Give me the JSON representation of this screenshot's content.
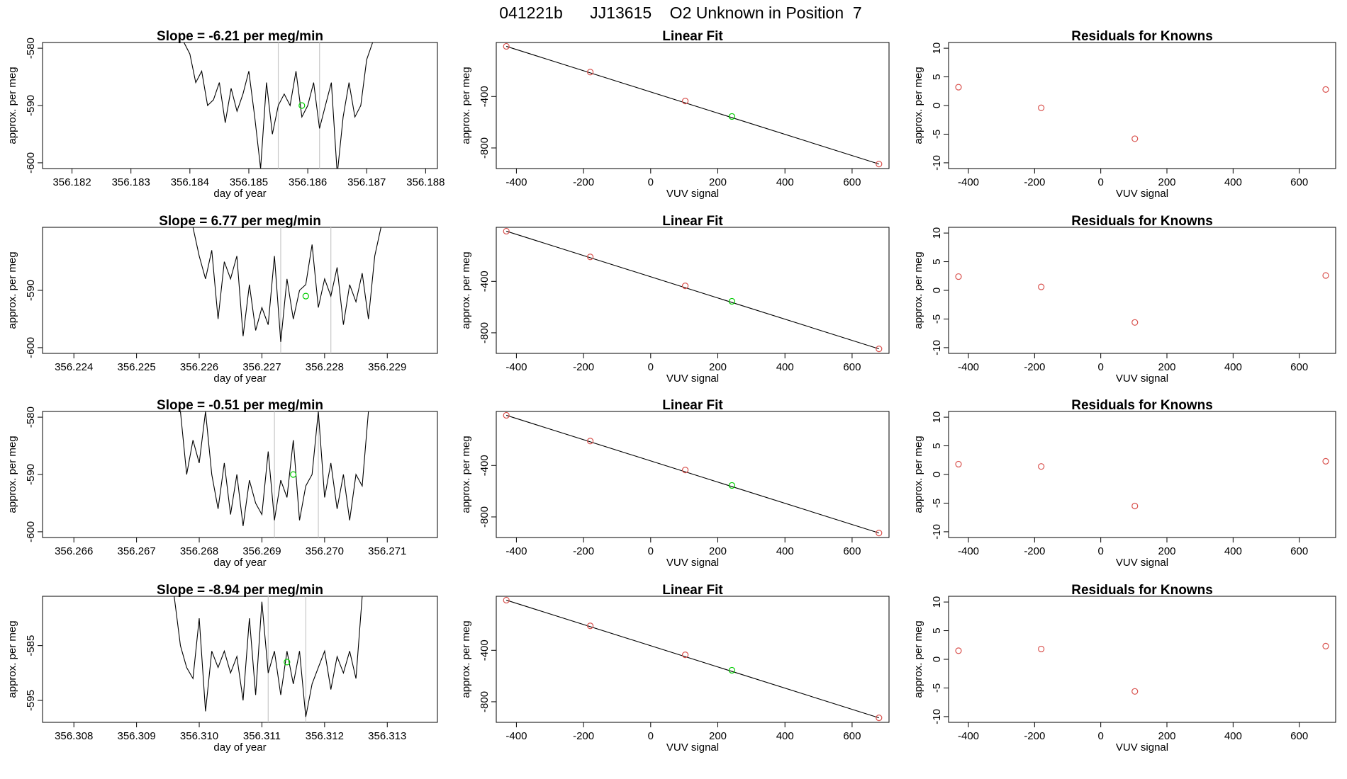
{
  "figure": {
    "suptitle": "041221b      JJ13615    O2 Unknown in Position  7"
  },
  "chart_data": [
    {
      "type": "line",
      "panel": "time-series",
      "row": 0,
      "title": "Slope =  -6.21  per meg/min",
      "xlabel": "day of year",
      "ylabel": "approx. per meg",
      "xlim": [
        356.1815,
        356.1882
      ],
      "ylim": [
        -601,
        -579
      ],
      "xticks": [
        356.182,
        356.183,
        356.184,
        356.185,
        356.186,
        356.187,
        356.188
      ],
      "xtick_labels": [
        "356.182",
        "356.183",
        "356.184",
        "356.185",
        "356.186",
        "356.187",
        "356.188"
      ],
      "yticks": [
        -580,
        -590,
        -600
      ],
      "ytick_labels": [
        "-580",
        "-590",
        "-600"
      ],
      "vlines": [
        356.1855,
        356.1862
      ],
      "marker": {
        "x": 356.1859,
        "y": -590,
        "color": "#00cc00"
      },
      "series": [
        {
          "x": [
            356.1839,
            356.184,
            356.1841,
            356.1842,
            356.1843,
            356.1844,
            356.1845,
            356.1846,
            356.1847,
            356.1848,
            356.1849,
            356.185,
            356.1851,
            356.1852,
            356.1853,
            356.1854,
            356.1855,
            356.1856,
            356.1857,
            356.1858,
            356.1859,
            356.186,
            356.1861,
            356.1862,
            356.1863,
            356.1864,
            356.1865,
            356.1866,
            356.1867,
            356.1868,
            356.1869,
            356.187,
            356.1871
          ],
          "y": [
            -579,
            -581,
            -586,
            -584,
            -590,
            -589,
            -586,
            -593,
            -587,
            -591,
            -588,
            -584,
            -592,
            -601,
            -586,
            -595,
            -590,
            -588,
            -590,
            -584,
            -592,
            -590,
            -586,
            -594,
            -590,
            -586,
            -602,
            -592,
            -586,
            -592,
            -590,
            -582,
            -579
          ]
        }
      ]
    },
    {
      "type": "scatter",
      "panel": "linear-fit",
      "row": 0,
      "title": "Linear Fit",
      "xlabel": "VUV signal",
      "ylabel": "approx. per meg",
      "xlim": [
        -460,
        710
      ],
      "ylim": [
        -960,
        20
      ],
      "xticks": [
        -400,
        -200,
        0,
        200,
        400,
        600
      ],
      "xtick_labels": [
        "-400",
        "-200",
        "0",
        "200",
        "400",
        "600"
      ],
      "yticks": [
        -400,
        -800
      ],
      "ytick_labels": [
        "-400",
        "-800"
      ],
      "fit_line": {
        "x": [
          -430,
          680
        ],
        "y": [
          -10,
          -925
        ]
      },
      "points": {
        "x": [
          -430,
          -180,
          103,
          680
        ],
        "y": [
          -10,
          -210,
          -435,
          -925
        ]
      },
      "unknown_point": {
        "x": 242,
        "y": -555
      }
    },
    {
      "type": "scatter",
      "panel": "residuals",
      "row": 0,
      "title": "Residuals for Knowns",
      "xlabel": "VUV signal",
      "ylabel": "approx. per meg",
      "xlim": [
        -460,
        710
      ],
      "ylim": [
        -11,
        11
      ],
      "xticks": [
        -400,
        -200,
        0,
        200,
        400,
        600
      ],
      "xtick_labels": [
        "-400",
        "-200",
        "0",
        "200",
        "400",
        "600"
      ],
      "yticks": [
        10,
        5,
        0,
        -5,
        -10
      ],
      "ytick_labels": [
        "10",
        "5",
        "0",
        "-5",
        "-10"
      ],
      "points": {
        "x": [
          -430,
          -180,
          103,
          680
        ],
        "y": [
          3.2,
          -0.4,
          -5.8,
          2.8
        ]
      }
    },
    {
      "type": "line",
      "panel": "time-series",
      "row": 1,
      "title": "Slope =  6.77  per meg/min",
      "xlabel": "day of year",
      "ylabel": "approx. per meg",
      "xlim": [
        356.2235,
        356.2298
      ],
      "ylim": [
        -601,
        -579
      ],
      "xticks": [
        356.224,
        356.225,
        356.226,
        356.227,
        356.228,
        356.229
      ],
      "xtick_labels": [
        "356.224",
        "356.225",
        "356.226",
        "356.227",
        "356.228",
        "356.229"
      ],
      "yticks": [
        -590,
        -600
      ],
      "ytick_labels": [
        "-590",
        "-600"
      ],
      "vlines": [
        356.2273,
        356.2281
      ],
      "marker": {
        "x": 356.2277,
        "y": -591,
        "color": "#00cc00"
      },
      "series": [
        {
          "x": [
            356.2259,
            356.226,
            356.2261,
            356.2262,
            356.2263,
            356.2264,
            356.2265,
            356.2266,
            356.2267,
            356.2268,
            356.2269,
            356.227,
            356.2271,
            356.2272,
            356.2273,
            356.2274,
            356.2275,
            356.2276,
            356.2277,
            356.2278,
            356.2279,
            356.228,
            356.2281,
            356.2282,
            356.2283,
            356.2284,
            356.2285,
            356.2286,
            356.2287,
            356.2288,
            356.2289
          ],
          "y": [
            -579,
            -584,
            -588,
            -583,
            -595,
            -585,
            -588,
            -584,
            -598,
            -589,
            -597,
            -593,
            -596,
            -584,
            -599,
            -588,
            -595,
            -590,
            -589,
            -582,
            -593,
            -588,
            -591,
            -586,
            -596,
            -589,
            -592,
            -587,
            -595,
            -584,
            -579
          ]
        }
      ]
    },
    {
      "type": "scatter",
      "panel": "linear-fit",
      "row": 1,
      "title": "Linear Fit",
      "xlabel": "VUV signal",
      "ylabel": "approx. per meg",
      "xlim": [
        -460,
        710
      ],
      "ylim": [
        -960,
        20
      ],
      "xticks": [
        -400,
        -200,
        0,
        200,
        400,
        600
      ],
      "xtick_labels": [
        "-400",
        "-200",
        "0",
        "200",
        "400",
        "600"
      ],
      "yticks": [
        -400,
        -800
      ],
      "ytick_labels": [
        "-400",
        "-800"
      ],
      "fit_line": {
        "x": [
          -430,
          680
        ],
        "y": [
          -10,
          -925
        ]
      },
      "points": {
        "x": [
          -430,
          -180,
          103,
          680
        ],
        "y": [
          -10,
          -210,
          -435,
          -925
        ]
      },
      "unknown_point": {
        "x": 242,
        "y": -555
      }
    },
    {
      "type": "scatter",
      "panel": "residuals",
      "row": 1,
      "title": "Residuals for Knowns",
      "xlabel": "VUV signal",
      "ylabel": "approx. per meg",
      "xlim": [
        -460,
        710
      ],
      "ylim": [
        -11,
        11
      ],
      "xticks": [
        -400,
        -200,
        0,
        200,
        400,
        600
      ],
      "xtick_labels": [
        "-400",
        "-200",
        "0",
        "200",
        "400",
        "600"
      ],
      "yticks": [
        10,
        5,
        0,
        -5,
        -10
      ],
      "ytick_labels": [
        "10",
        "5",
        "0",
        "-5",
        "-10"
      ],
      "points": {
        "x": [
          -430,
          -180,
          103,
          680
        ],
        "y": [
          2.4,
          0.6,
          -5.6,
          2.6
        ]
      }
    },
    {
      "type": "line",
      "panel": "time-series",
      "row": 2,
      "title": "Slope =  -0.51  per meg/min",
      "xlabel": "day of year",
      "ylabel": "approx. per meg",
      "xlim": [
        356.2655,
        356.2718
      ],
      "ylim": [
        -601,
        -579
      ],
      "xticks": [
        356.266,
        356.267,
        356.268,
        356.269,
        356.27,
        356.271
      ],
      "xtick_labels": [
        "356.266",
        "356.267",
        "356.268",
        "356.269",
        "356.270",
        "356.271"
      ],
      "yticks": [
        -580,
        -590,
        -600
      ],
      "ytick_labels": [
        "-580",
        "-590",
        "-600"
      ],
      "vlines": [
        356.2692,
        356.2699
      ],
      "marker": {
        "x": 356.2695,
        "y": -590,
        "color": "#00cc00"
      },
      "series": [
        {
          "x": [
            356.2677,
            356.2678,
            356.2679,
            356.268,
            356.2681,
            356.2682,
            356.2683,
            356.2684,
            356.2685,
            356.2686,
            356.2687,
            356.2688,
            356.2689,
            356.269,
            356.2691,
            356.2692,
            356.2693,
            356.2694,
            356.2695,
            356.2696,
            356.2697,
            356.2698,
            356.2699,
            356.27,
            356.2701,
            356.2702,
            356.2703,
            356.2704,
            356.2705,
            356.2706,
            356.2707
          ],
          "y": [
            -579,
            -590,
            -584,
            -588,
            -579,
            -590,
            -596,
            -588,
            -597,
            -590,
            -599,
            -591,
            -595,
            -597,
            -586,
            -598,
            -591,
            -594,
            -584,
            -598,
            -592,
            -590,
            -579,
            -594,
            -588,
            -596,
            -590,
            -598,
            -590,
            -592,
            -579
          ]
        }
      ]
    },
    {
      "type": "scatter",
      "panel": "linear-fit",
      "row": 2,
      "title": "Linear Fit",
      "xlabel": "VUV signal",
      "ylabel": "approx. per meg",
      "xlim": [
        -460,
        710
      ],
      "ylim": [
        -960,
        20
      ],
      "xticks": [
        -400,
        -200,
        0,
        200,
        400,
        600
      ],
      "xtick_labels": [
        "-400",
        "-200",
        "0",
        "200",
        "400",
        "600"
      ],
      "yticks": [
        -400,
        -800
      ],
      "ytick_labels": [
        "-400",
        "-800"
      ],
      "fit_line": {
        "x": [
          -430,
          680
        ],
        "y": [
          -10,
          -925
        ]
      },
      "points": {
        "x": [
          -430,
          -180,
          103,
          680
        ],
        "y": [
          -10,
          -210,
          -435,
          -925
        ]
      },
      "unknown_point": {
        "x": 242,
        "y": -555
      }
    },
    {
      "type": "scatter",
      "panel": "residuals",
      "row": 2,
      "title": "Residuals for Knowns",
      "xlabel": "VUV signal",
      "ylabel": "approx. per meg",
      "xlim": [
        -460,
        710
      ],
      "ylim": [
        -11,
        11
      ],
      "xticks": [
        -400,
        -200,
        0,
        200,
        400,
        600
      ],
      "xtick_labels": [
        "-400",
        "-200",
        "0",
        "200",
        "400",
        "600"
      ],
      "yticks": [
        10,
        5,
        0,
        -5,
        -10
      ],
      "ytick_labels": [
        "10",
        "5",
        "0",
        "-5",
        "-10"
      ],
      "points": {
        "x": [
          -430,
          -180,
          103,
          680
        ],
        "y": [
          1.8,
          1.4,
          -5.5,
          2.3
        ]
      }
    },
    {
      "type": "line",
      "panel": "time-series",
      "row": 3,
      "title": "Slope =  -8.94  per meg/min",
      "xlabel": "day of year",
      "ylabel": "approx. per meg",
      "xlim": [
        356.3075,
        356.3138
      ],
      "ylim": [
        -599,
        -576
      ],
      "xticks": [
        356.308,
        356.309,
        356.31,
        356.311,
        356.312,
        356.313
      ],
      "xtick_labels": [
        "356.308",
        "356.309",
        "356.310",
        "356.311",
        "356.312",
        "356.313"
      ],
      "yticks": [
        -585,
        -595
      ],
      "ytick_labels": [
        "-585",
        "-595"
      ],
      "vlines": [
        356.3111,
        356.3117
      ],
      "marker": {
        "x": 356.3114,
        "y": -588,
        "color": "#00cc00"
      },
      "series": [
        {
          "x": [
            356.3096,
            356.3097,
            356.3098,
            356.3099,
            356.31,
            356.3101,
            356.3102,
            356.3103,
            356.3104,
            356.3105,
            356.3106,
            356.3107,
            356.3108,
            356.3109,
            356.311,
            356.3111,
            356.3112,
            356.3113,
            356.3114,
            356.3115,
            356.3116,
            356.3117,
            356.3118,
            356.3119,
            356.312,
            356.3121,
            356.3122,
            356.3123,
            356.3124,
            356.3125,
            356.3126
          ],
          "y": [
            -576,
            -585,
            -589,
            -591,
            -580,
            -597,
            -586,
            -589,
            -586,
            -590,
            -587,
            -595,
            -580,
            -594,
            -577,
            -590,
            -586,
            -594,
            -586,
            -592,
            -586,
            -598,
            -592,
            -589,
            -586,
            -593,
            -587,
            -590,
            -586,
            -591,
            -576
          ]
        }
      ]
    },
    {
      "type": "scatter",
      "panel": "linear-fit",
      "row": 3,
      "title": "Linear Fit",
      "xlabel": "VUV signal",
      "ylabel": "approx. per meg",
      "xlim": [
        -460,
        710
      ],
      "ylim": [
        -960,
        20
      ],
      "xticks": [
        -400,
        -200,
        0,
        200,
        400,
        600
      ],
      "xtick_labels": [
        "-400",
        "-200",
        "0",
        "200",
        "400",
        "600"
      ],
      "yticks": [
        -400,
        -800
      ],
      "ytick_labels": [
        "-400",
        "-800"
      ],
      "fit_line": {
        "x": [
          -430,
          680
        ],
        "y": [
          -10,
          -925
        ]
      },
      "points": {
        "x": [
          -430,
          -180,
          103,
          680
        ],
        "y": [
          -10,
          -210,
          -435,
          -925
        ]
      },
      "unknown_point": {
        "x": 242,
        "y": -555
      }
    },
    {
      "type": "scatter",
      "panel": "residuals",
      "row": 3,
      "title": "Residuals for Knowns",
      "xlabel": "VUV signal",
      "ylabel": "approx. per meg",
      "xlim": [
        -460,
        710
      ],
      "ylim": [
        -11,
        11
      ],
      "xticks": [
        -400,
        -200,
        0,
        200,
        400,
        600
      ],
      "xtick_labels": [
        "-400",
        "-200",
        "0",
        "200",
        "400",
        "600"
      ],
      "yticks": [
        10,
        5,
        0,
        -5,
        -10
      ],
      "ytick_labels": [
        "10",
        "5",
        "0",
        "-5",
        "-10"
      ],
      "points": {
        "x": [
          -430,
          -180,
          103,
          680
        ],
        "y": [
          1.5,
          1.8,
          -5.6,
          2.3
        ]
      }
    }
  ]
}
